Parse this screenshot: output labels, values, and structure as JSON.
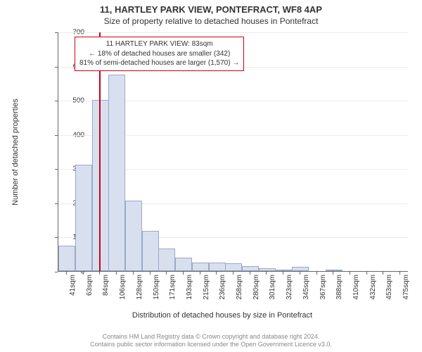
{
  "title_main": "11, HARTLEY PARK VIEW, PONTEFRACT, WF8 4AP",
  "title_sub": "Size of property relative to detached houses in Pontefract",
  "ylabel": "Number of detached properties",
  "xlabel": "Distribution of detached houses by size in Pontefract",
  "chart": {
    "type": "histogram",
    "ylim": [
      0,
      700
    ],
    "ytick_step": 100,
    "background_color": "#ffffff",
    "grid_color": "#ececec",
    "axis_color": "#666666",
    "bar_fill": "#d8e0f0",
    "bar_border": "#9aa8c7",
    "reference_line_color": "#cc0018",
    "reference_line_x": 83,
    "x_range": [
      30,
      486
    ],
    "bar_width_sqm": 21.7,
    "bars": [
      {
        "x": 30,
        "value": 75
      },
      {
        "x": 52,
        "value": 310
      },
      {
        "x": 74,
        "value": 500
      },
      {
        "x": 95,
        "value": 575
      },
      {
        "x": 117,
        "value": 205
      },
      {
        "x": 139,
        "value": 118
      },
      {
        "x": 160,
        "value": 65
      },
      {
        "x": 182,
        "value": 40
      },
      {
        "x": 204,
        "value": 25
      },
      {
        "x": 226,
        "value": 25
      },
      {
        "x": 247,
        "value": 22
      },
      {
        "x": 269,
        "value": 15
      },
      {
        "x": 291,
        "value": 8
      },
      {
        "x": 313,
        "value": 3
      },
      {
        "x": 334,
        "value": 12
      },
      {
        "x": 356,
        "value": 0
      },
      {
        "x": 378,
        "value": 1
      },
      {
        "x": 399,
        "value": 0
      },
      {
        "x": 421,
        "value": 0
      },
      {
        "x": 443,
        "value": 0
      },
      {
        "x": 465,
        "value": 0
      }
    ],
    "xticks": [
      41,
      63,
      84,
      106,
      128,
      150,
      171,
      193,
      215,
      236,
      258,
      280,
      301,
      323,
      345,
      367,
      388,
      410,
      432,
      453,
      475
    ],
    "xtick_unit": "sqm",
    "tick_fontsize": 10,
    "label_fontsize": 11,
    "title_fontsize": 13
  },
  "info_box": {
    "border_color": "#cc0018",
    "line1": "11 HARTLEY PARK VIEW: 83sqm",
    "line2": "← 18% of detached houses are smaller (342)",
    "line3": "81% of semi-detached houses are larger (1,570) →"
  },
  "footer": {
    "line1": "Contains HM Land Registry data © Crown copyright and database right 2024.",
    "line2": "Contains public sector information licensed under the Open Government Licence v3.0."
  }
}
